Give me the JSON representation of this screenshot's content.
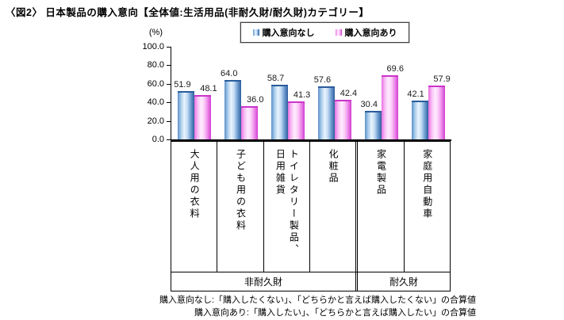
{
  "title": "〈図2〉 日本製品の購入意向【全体値:生活用品(非耐久財/耐久財)カテゴリー】",
  "legend": {
    "items": [
      {
        "label": "購入意向なし",
        "series": "no"
      },
      {
        "label": "購入意向あり",
        "series": "yes"
      }
    ]
  },
  "axis": {
    "unit_label": "(%)",
    "tick_labels": [
      "100.0",
      "80.0",
      "60.0",
      "40.0",
      "20.0",
      "0.0"
    ]
  },
  "chart_data": {
    "type": "bar",
    "title": "日本製品の購入意向(全体値:生活用品カテゴリー)",
    "categories": [
      "大人用の衣料",
      "子ども用の衣料",
      "トイレタリー製品、\n日用雑貨",
      "化粧品",
      "家電製品",
      "家庭用自動車"
    ],
    "series": [
      {
        "name": "購入意向なし",
        "key": "no",
        "color_edge": "#2d5f9e",
        "color_light": "#eaf4fd",
        "values": [
          51.9,
          64.0,
          58.7,
          57.6,
          30.4,
          42.1
        ]
      },
      {
        "name": "購入意向あり",
        "key": "yes",
        "color_edge": "#d23fd2",
        "color_light": "#ffecff",
        "values": [
          48.1,
          36.0,
          41.3,
          42.4,
          69.6,
          57.9
        ]
      }
    ],
    "groups": [
      {
        "label": "非耐久財",
        "span": 4
      },
      {
        "label": "耐久財",
        "span": 2
      }
    ],
    "ylabel": "(%)",
    "ylim": [
      0,
      100
    ],
    "ytick_interval": 20,
    "grid": false,
    "legend_position": "top",
    "value_label_format": "one_decimal"
  },
  "footnotes": [
    "購入意向なし:「購入したくない」、「どちらかと言えば購入したくない」の合算値",
    "購入意向あり:「購入したい」、「どちらかと言えば購入したい」の合算値"
  ],
  "colors": {
    "bar_no_edge": "#2d5f9e",
    "bar_no_light": "#eaf4fd",
    "bar_yes_edge": "#d23fd2",
    "bar_yes_light": "#ffecff",
    "axis": "#000000",
    "text": "#1a1a1a"
  }
}
